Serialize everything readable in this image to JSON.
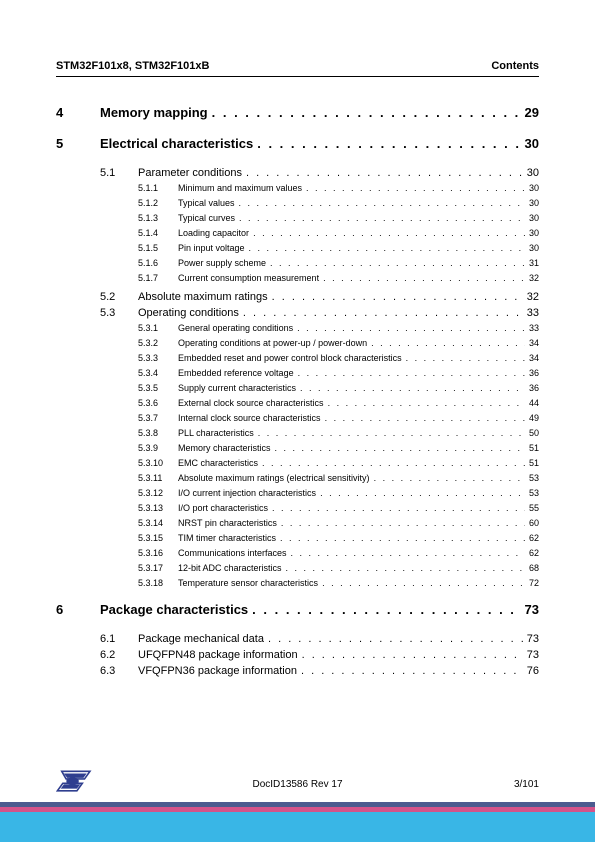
{
  "header": {
    "left": "STM32F101x8, STM32F101xB",
    "right": "Contents"
  },
  "toc": [
    {
      "level": 1,
      "num": "4",
      "title": "Memory mapping",
      "page": "29"
    },
    {
      "level": 1,
      "num": "5",
      "title": "Electrical characteristics",
      "page": "30",
      "children": [
        {
          "level": 2,
          "num": "5.1",
          "title": "Parameter conditions",
          "page": "30",
          "children": [
            {
              "level": 3,
              "num": "5.1.1",
              "title": "Minimum and maximum values",
              "page": "30"
            },
            {
              "level": 3,
              "num": "5.1.2",
              "title": "Typical values",
              "page": "30"
            },
            {
              "level": 3,
              "num": "5.1.3",
              "title": "Typical curves",
              "page": "30"
            },
            {
              "level": 3,
              "num": "5.1.4",
              "title": "Loading capacitor",
              "page": "30"
            },
            {
              "level": 3,
              "num": "5.1.5",
              "title": "Pin input voltage",
              "page": "30"
            },
            {
              "level": 3,
              "num": "5.1.6",
              "title": "Power supply scheme",
              "page": "31"
            },
            {
              "level": 3,
              "num": "5.1.7",
              "title": "Current consumption measurement",
              "page": "32"
            }
          ]
        },
        {
          "level": 2,
          "num": "5.2",
          "title": "Absolute maximum ratings",
          "page": "32"
        },
        {
          "level": 2,
          "num": "5.3",
          "title": "Operating conditions",
          "page": "33",
          "children": [
            {
              "level": 3,
              "num": "5.3.1",
              "title": "General operating conditions",
              "page": "33"
            },
            {
              "level": 3,
              "num": "5.3.2",
              "title": "Operating conditions at power-up / power-down",
              "page": "34"
            },
            {
              "level": 3,
              "num": "5.3.3",
              "title": "Embedded reset and power control block characteristics",
              "page": "34"
            },
            {
              "level": 3,
              "num": "5.3.4",
              "title": "Embedded reference voltage",
              "page": "36"
            },
            {
              "level": 3,
              "num": "5.3.5",
              "title": "Supply current characteristics",
              "page": "36"
            },
            {
              "level": 3,
              "num": "5.3.6",
              "title": "External clock source characteristics",
              "page": "44"
            },
            {
              "level": 3,
              "num": "5.3.7",
              "title": "Internal clock source characteristics",
              "page": "49"
            },
            {
              "level": 3,
              "num": "5.3.8",
              "title": "PLL characteristics",
              "page": "50"
            },
            {
              "level": 3,
              "num": "5.3.9",
              "title": "Memory characteristics",
              "page": "51"
            },
            {
              "level": 3,
              "num": "5.3.10",
              "title": "EMC characteristics",
              "page": "51"
            },
            {
              "level": 3,
              "num": "5.3.11",
              "title": "Absolute maximum ratings (electrical sensitivity)",
              "page": "53"
            },
            {
              "level": 3,
              "num": "5.3.12",
              "title": "I/O current injection characteristics",
              "page": "53"
            },
            {
              "level": 3,
              "num": "5.3.13",
              "title": "I/O port characteristics",
              "page": "55"
            },
            {
              "level": 3,
              "num": "5.3.14",
              "title": "NRST pin characteristics",
              "page": "60"
            },
            {
              "level": 3,
              "num": "5.3.15",
              "title": "TIM timer characteristics",
              "page": "62"
            },
            {
              "level": 3,
              "num": "5.3.16",
              "title": "Communications interfaces",
              "page": "62"
            },
            {
              "level": 3,
              "num": "5.3.17",
              "title": "12-bit ADC characteristics",
              "page": "68"
            },
            {
              "level": 3,
              "num": "5.3.18",
              "title": "Temperature sensor characteristics",
              "page": "72"
            }
          ]
        }
      ]
    },
    {
      "level": 1,
      "num": "6",
      "title": "Package characteristics",
      "page": "73",
      "children": [
        {
          "level": 2,
          "num": "6.1",
          "title": "Package mechanical data",
          "page": "73"
        },
        {
          "level": 2,
          "num": "6.2",
          "title": "UFQFPN48 package information",
          "page": "73"
        },
        {
          "level": 2,
          "num": "6.3",
          "title": "VFQFPN36 package information",
          "page": "76"
        }
      ]
    }
  ],
  "footer": {
    "docid": "DocID13586 Rev 17",
    "pagenum": "3/101",
    "stripe_colors": [
      "#4b5b8f",
      "#d4538a",
      "#39b6e6"
    ],
    "logo_color": "#2f3e8f"
  }
}
